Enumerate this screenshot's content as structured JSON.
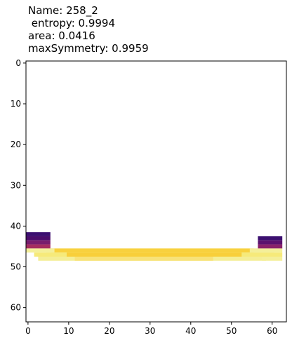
{
  "chart_data": {
    "type": "heatmap",
    "title_lines": [
      "Name: 258_2",
      " entropy: 0.9994",
      "area: 0.0416",
      "maxSymmetry: 0.9959"
    ],
    "x_ticks": [
      0,
      10,
      20,
      30,
      40,
      50,
      60
    ],
    "y_ticks": [
      0,
      10,
      20,
      30,
      40,
      50,
      60
    ],
    "xlim": [
      -0.5,
      63.5
    ],
    "ylim": [
      63.5,
      -0.5
    ],
    "colormap": "inferno",
    "background": "#ffffff",
    "cells": [
      {
        "x0": 0,
        "x1": 5,
        "y0": 42,
        "y1": 43,
        "color": "#3b0f70"
      },
      {
        "x0": 0,
        "x1": 5,
        "y0": 43,
        "y1": 44,
        "color": "#4a0c6b"
      },
      {
        "x0": 0,
        "x1": 5,
        "y0": 44,
        "y1": 45,
        "color": "#781c6d"
      },
      {
        "x0": 0,
        "x1": 5,
        "y0": 45,
        "y1": 46,
        "color": "#a52c60"
      },
      {
        "x0": 57,
        "x1": 62,
        "y0": 43,
        "y1": 44,
        "color": "#3b0f70"
      },
      {
        "x0": 57,
        "x1": 62,
        "y0": 44,
        "y1": 45,
        "color": "#5c126e"
      },
      {
        "x0": 57,
        "x1": 62,
        "y0": 45,
        "y1": 46,
        "color": "#8a226a"
      },
      {
        "x0": 6,
        "x1": 55,
        "y0": 46,
        "y1": 47,
        "color": "#f8d13e"
      },
      {
        "x0": 5,
        "x1": 60,
        "y0": 46,
        "y1": 47,
        "color": "#f6e58c",
        "under": true
      },
      {
        "x0": 0,
        "x1": 6,
        "y0": 46,
        "y1": 47,
        "color": "#f4ef9a"
      },
      {
        "x0": 55,
        "x1": 62,
        "y0": 46,
        "y1": 47,
        "color": "#f4ef9a"
      },
      {
        "x0": 2,
        "x1": 62,
        "y0": 47,
        "y1": 48,
        "color": "#f6ea7a"
      },
      {
        "x0": 10,
        "x1": 52,
        "y0": 47,
        "y1": 48,
        "color": "#f8cf3a"
      },
      {
        "x0": 3,
        "x1": 58,
        "y0": 48,
        "y1": 49,
        "color": "#f4ee96"
      },
      {
        "x0": 58,
        "x1": 62,
        "y0": 48,
        "y1": 49,
        "color": "#f4ef9a"
      },
      {
        "x0": 12,
        "x1": 45,
        "y0": 48,
        "y1": 49,
        "color": "#f7e27a"
      }
    ]
  }
}
